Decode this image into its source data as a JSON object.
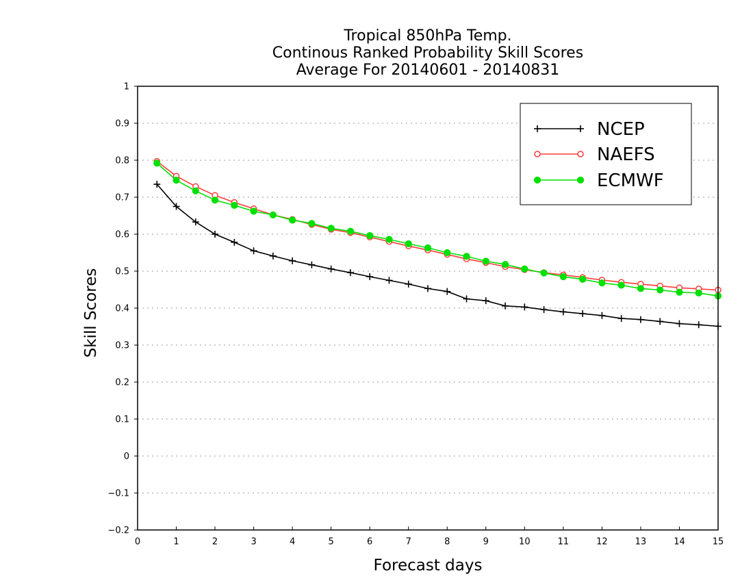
{
  "chart_data": {
    "type": "line",
    "title": [
      "Tropical 850hPa Temp.",
      "Continous Ranked Probability Skill Scores",
      "Average For 20140601 - 20140831"
    ],
    "xlabel": "Forecast days",
    "ylabel": "Skill Scores",
    "xlim": [
      0,
      15
    ],
    "ylim": [
      -0.2,
      1
    ],
    "x_ticks": [
      0,
      1,
      2,
      3,
      4,
      5,
      6,
      7,
      8,
      9,
      10,
      11,
      12,
      13,
      14,
      15
    ],
    "x_tick_labels": [
      "0",
      "1",
      "2",
      "3",
      "4",
      "5",
      "6",
      "7",
      "8",
      "9",
      "10",
      "11",
      "12",
      "13",
      "14",
      "15"
    ],
    "y_ticks": [
      -0.2,
      -0.1,
      0,
      0.1,
      0.2,
      0.3,
      0.4,
      0.5,
      0.6,
      0.7,
      0.8,
      0.9,
      1
    ],
    "y_tick_labels": [
      "−0.2",
      "−0.1",
      "0",
      "0.1",
      "0.2",
      "0.3",
      "0.4",
      "0.5",
      "0.6",
      "0.7",
      "0.8",
      "0.9",
      "1"
    ],
    "grid": "horizontal dotted",
    "legend_position": "top-right",
    "x": [
      0.5,
      1,
      1.5,
      2,
      2.5,
      3,
      3.5,
      4,
      4.5,
      5,
      5.5,
      6,
      6.5,
      7,
      7.5,
      8,
      8.5,
      9,
      9.5,
      10,
      10.5,
      11,
      11.5,
      12,
      12.5,
      13,
      13.5,
      14,
      14.5,
      15
    ],
    "series": [
      {
        "name": "NCEP",
        "color": "#000000",
        "marker": "plus",
        "values": [
          0.735,
          0.675,
          0.633,
          0.6,
          0.578,
          0.555,
          0.541,
          0.528,
          0.517,
          0.506,
          0.496,
          0.485,
          0.475,
          0.465,
          0.453,
          0.445,
          0.425,
          0.42,
          0.406,
          0.403,
          0.396,
          0.39,
          0.385,
          0.38,
          0.372,
          0.369,
          0.364,
          0.358,
          0.355,
          0.351
        ]
      },
      {
        "name": "NAEFS",
        "color": "#ff3b3b",
        "marker": "open-circle",
        "values": [
          0.797,
          0.757,
          0.729,
          0.705,
          0.686,
          0.669,
          0.652,
          0.64,
          0.626,
          0.613,
          0.604,
          0.592,
          0.58,
          0.568,
          0.557,
          0.545,
          0.533,
          0.523,
          0.512,
          0.504,
          0.496,
          0.49,
          0.483,
          0.476,
          0.47,
          0.465,
          0.46,
          0.455,
          0.452,
          0.449
        ]
      },
      {
        "name": "ECMWF",
        "color": "#00e000",
        "marker": "filled-circle",
        "values": [
          0.792,
          0.746,
          0.717,
          0.692,
          0.678,
          0.662,
          0.652,
          0.638,
          0.629,
          0.616,
          0.608,
          0.596,
          0.586,
          0.574,
          0.563,
          0.55,
          0.54,
          0.527,
          0.518,
          0.506,
          0.495,
          0.485,
          0.478,
          0.468,
          0.462,
          0.453,
          0.449,
          0.443,
          0.441,
          0.433
        ]
      }
    ]
  }
}
